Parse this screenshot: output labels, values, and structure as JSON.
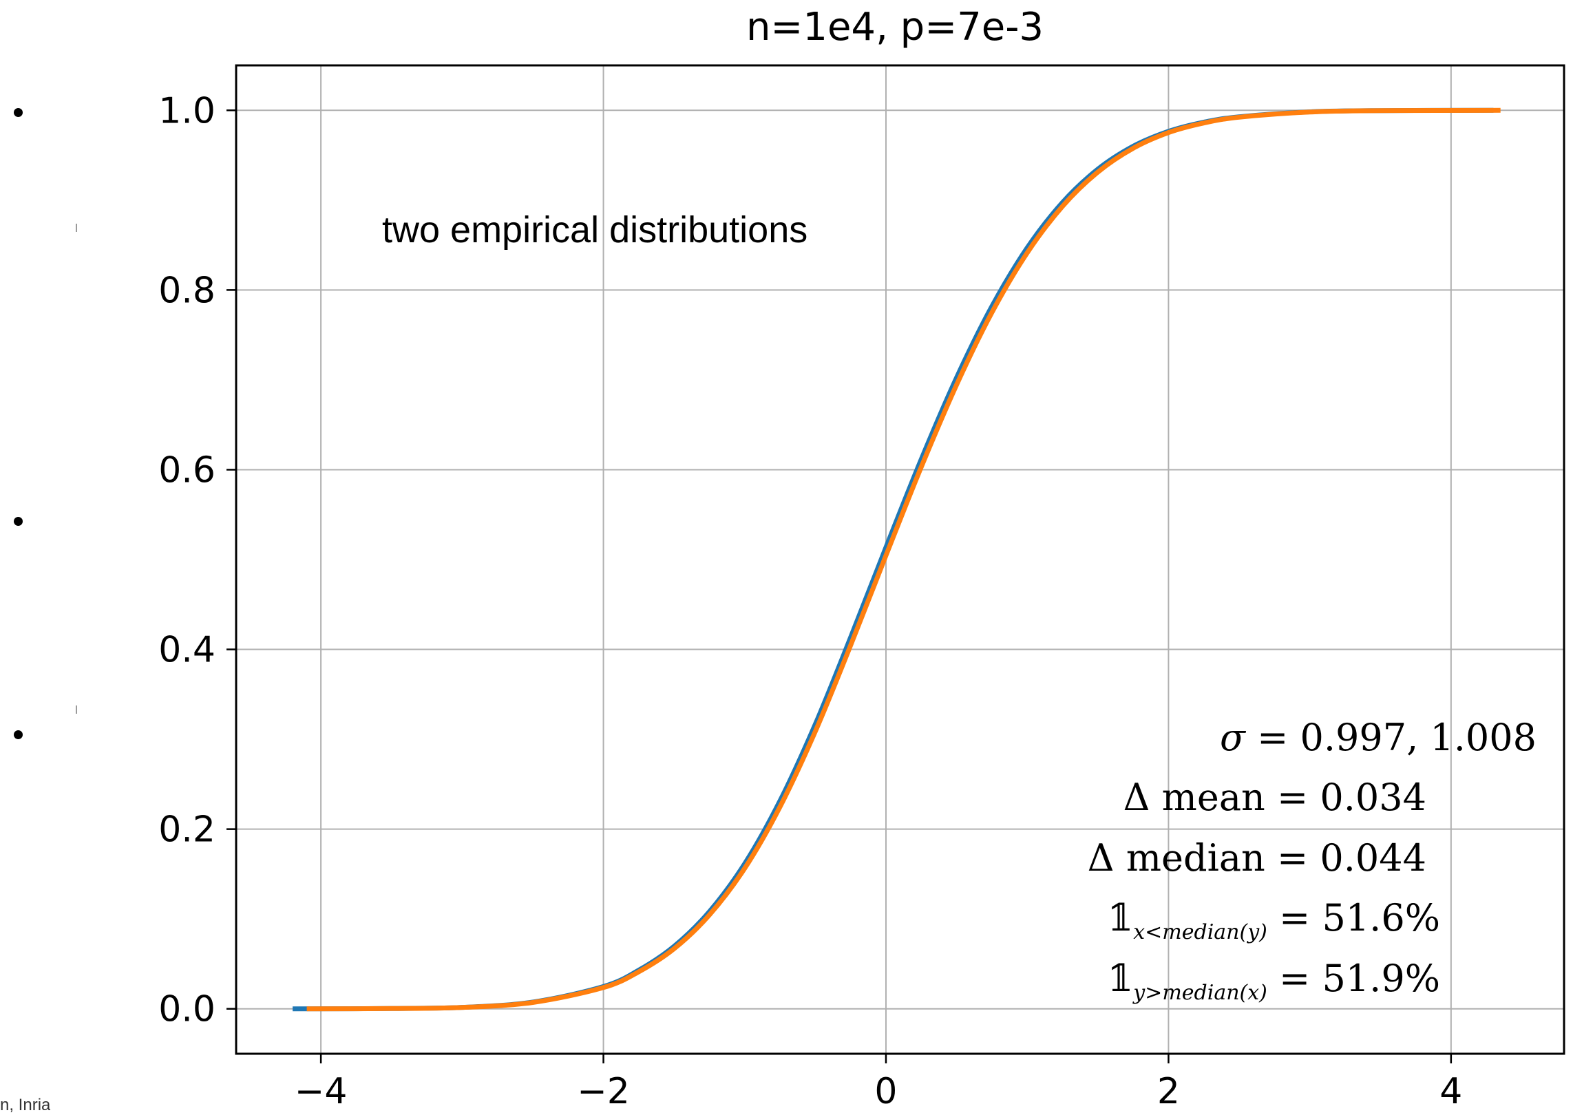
{
  "slide": {
    "footer": "n, Inria"
  },
  "chart_data": {
    "type": "line",
    "title": "n=1e4, p=7e-3",
    "annotation": "two empirical distributions",
    "xlabel": "",
    "ylabel": "",
    "xlim": [
      -4.6,
      4.8
    ],
    "ylim": [
      -0.05,
      1.05
    ],
    "xticks": [
      -4,
      -2,
      0,
      2,
      4
    ],
    "xtick_labels": [
      "−4",
      "−2",
      "0",
      "2",
      "4"
    ],
    "yticks": [
      0.0,
      0.2,
      0.4,
      0.6,
      0.8,
      1.0
    ],
    "ytick_labels": [
      "0.0",
      "0.2",
      "0.4",
      "0.6",
      "0.8",
      "1.0"
    ],
    "grid": true,
    "series": [
      {
        "color": "#1f77b4",
        "x": [
          -4.2,
          -3.5,
          -3.0,
          -2.5,
          -2.0,
          -1.75,
          -1.5,
          -1.25,
          -1.0,
          -0.75,
          -0.5,
          -0.25,
          0.0,
          0.25,
          0.5,
          0.75,
          1.0,
          1.25,
          1.5,
          1.75,
          2.0,
          2.25,
          2.5,
          3.0,
          3.5,
          4.3
        ],
        "y": [
          0.0,
          0.0003,
          0.0016,
          0.0075,
          0.0248,
          0.043,
          0.0695,
          0.1082,
          0.1615,
          0.2315,
          0.3168,
          0.4135,
          0.5136,
          0.6117,
          0.7025,
          0.7818,
          0.847,
          0.8975,
          0.9345,
          0.96,
          0.9766,
          0.9868,
          0.9928,
          0.9983,
          0.9997,
          1.0
        ]
      },
      {
        "color": "#ff7f0e",
        "x": [
          -4.1,
          -3.5,
          -3.0,
          -2.5,
          -2.0,
          -1.75,
          -1.5,
          -1.25,
          -1.0,
          -0.75,
          -0.5,
          -0.25,
          0.0,
          0.25,
          0.5,
          0.75,
          1.0,
          1.25,
          1.5,
          1.75,
          2.0,
          2.25,
          2.5,
          3.0,
          3.5,
          4.35
        ],
        "y": [
          0.0,
          0.0003,
          0.0015,
          0.0071,
          0.0237,
          0.0412,
          0.0669,
          0.1045,
          0.1564,
          0.2249,
          0.3088,
          0.4046,
          0.5046,
          0.6031,
          0.6946,
          0.775,
          0.8414,
          0.8932,
          0.9313,
          0.9578,
          0.9752,
          0.9859,
          0.9923,
          0.9981,
          0.9996,
          1.0
        ]
      }
    ],
    "stats": [
      {
        "lhs": "σ",
        "rhs": "0.997, 1.008"
      },
      {
        "lhs": "Δ mean",
        "rhs": "0.034"
      },
      {
        "lhs": "Δ median",
        "rhs": "0.044"
      },
      {
        "lhs": "𝟙",
        "sub": "x<median(y)",
        "rhs": "51.6%"
      },
      {
        "lhs": "𝟙",
        "sub": "y>median(x)",
        "rhs": "51.9%"
      }
    ]
  }
}
